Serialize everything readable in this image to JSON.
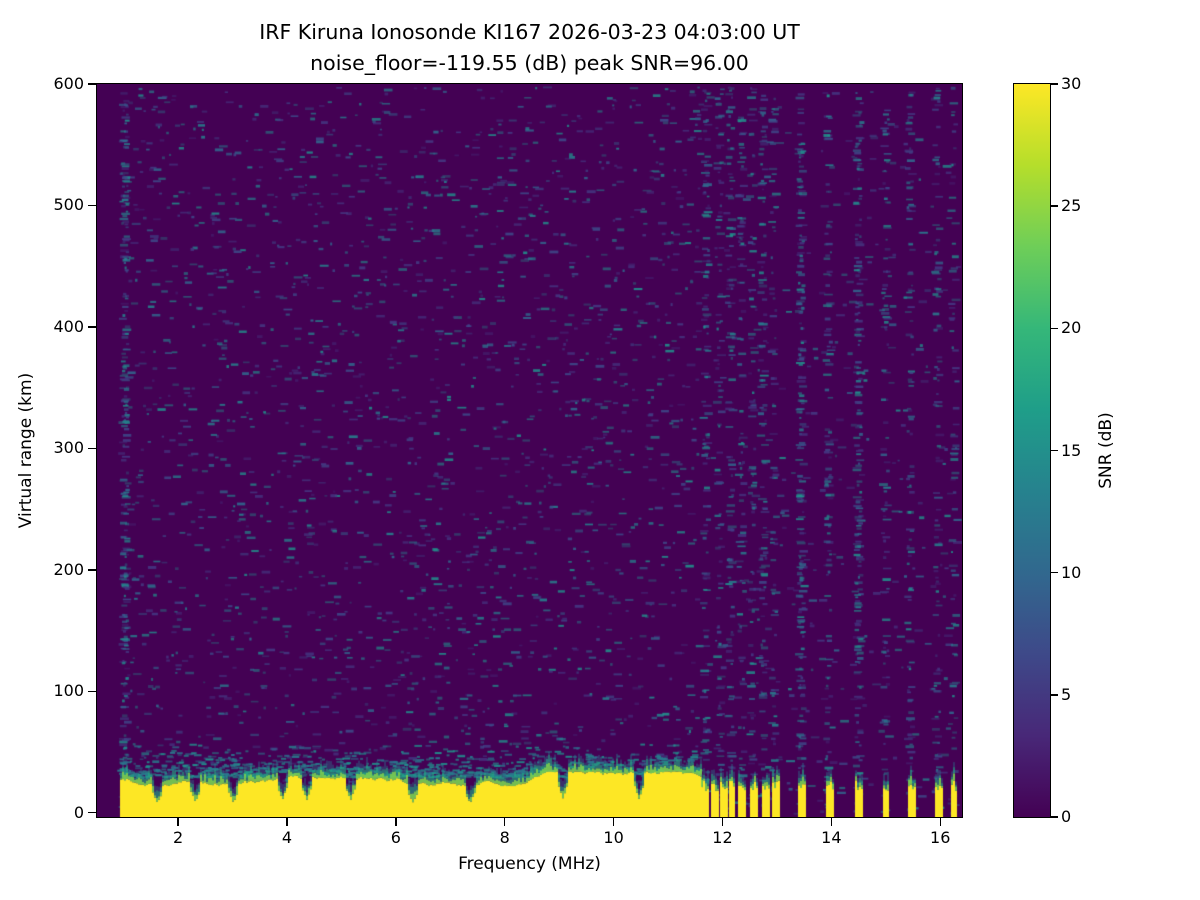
{
  "chart_data": {
    "type": "heatmap",
    "title_line1": "IRF Kiruna Ionosonde KI167 2026-03-23 04:03:00  UT",
    "title_line2": "noise_floor=-119.55 (dB) peak SNR=96.00",
    "xlabel": "Frequency (MHz)",
    "ylabel": "Virtual range (km)",
    "xlim": [
      0.51,
      16.4
    ],
    "ylim": [
      -3.5,
      600
    ],
    "x_ticks": [
      2,
      4,
      6,
      8,
      10,
      12,
      14,
      16
    ],
    "y_ticks": [
      0,
      100,
      200,
      300,
      400,
      500,
      600
    ],
    "colormap": "viridis",
    "grid": false,
    "background": "#440154",
    "colorbar": {
      "label": "SNR (dB)",
      "ticks": [
        0,
        5,
        10,
        15,
        20,
        25,
        30
      ],
      "range": [
        0,
        30
      ],
      "gradient": [
        "#440154",
        "#482878",
        "#3e4989",
        "#31688e",
        "#26828e",
        "#1f9e89",
        "#35b779",
        "#6ece58",
        "#b5de2b",
        "#fde725"
      ]
    },
    "noise": {
      "colors": [
        "#3e4989",
        "#31688e",
        "#26828e",
        "#21918c",
        "#443983"
      ],
      "base_count": 3200,
      "high_freq_thin_above_mhz": 11.6,
      "stripes": [
        {
          "f": 1.03,
          "count": 240
        },
        {
          "f": 11.7,
          "count": 120
        },
        {
          "f": 11.95,
          "count": 90
        },
        {
          "f": 12.15,
          "count": 110
        },
        {
          "f": 12.35,
          "count": 90
        },
        {
          "f": 12.55,
          "count": 85
        },
        {
          "f": 12.75,
          "count": 100
        },
        {
          "f": 12.95,
          "count": 80
        },
        {
          "f": 13.45,
          "count": 200
        },
        {
          "f": 13.95,
          "count": 110
        },
        {
          "f": 14.5,
          "count": 190
        },
        {
          "f": 15.0,
          "count": 90
        },
        {
          "f": 15.45,
          "count": 110
        },
        {
          "f": 15.95,
          "count": 100
        },
        {
          "f": 16.25,
          "count": 70
        }
      ],
      "band_fuzz": {
        "count": 900,
        "km_min": 30,
        "km_max": 58,
        "f_min": 0.95,
        "f_max": 11.62
      }
    },
    "echo_band": {
      "description": "Saturated near-range echo band, SNR at colormap max (30 dB)",
      "f_start": 0.95,
      "f_solid_end": 11.62,
      "top_km_mean": 28,
      "top_km_jitter": 6,
      "yellow": "#fde725",
      "cap_colors": [
        "#7ad151",
        "#22a884",
        "#2a788e"
      ],
      "notches": [
        1.6,
        2.3,
        3.0,
        3.9,
        4.35,
        5.15,
        6.3,
        7.35,
        9.05,
        10.45
      ],
      "intermittent": [
        [
          11.62,
          11.74
        ],
        [
          11.8,
          11.9
        ],
        [
          11.97,
          12.07
        ],
        [
          12.12,
          12.22
        ],
        [
          12.3,
          12.4
        ],
        [
          12.52,
          12.62
        ],
        [
          12.74,
          12.84
        ],
        [
          12.92,
          13.02
        ],
        [
          13.4,
          13.5
        ],
        [
          13.92,
          14.02
        ],
        [
          14.45,
          14.55
        ],
        [
          14.95,
          15.05
        ],
        [
          15.42,
          15.52
        ],
        [
          15.92,
          16.02
        ],
        [
          16.2,
          16.3
        ]
      ]
    }
  }
}
